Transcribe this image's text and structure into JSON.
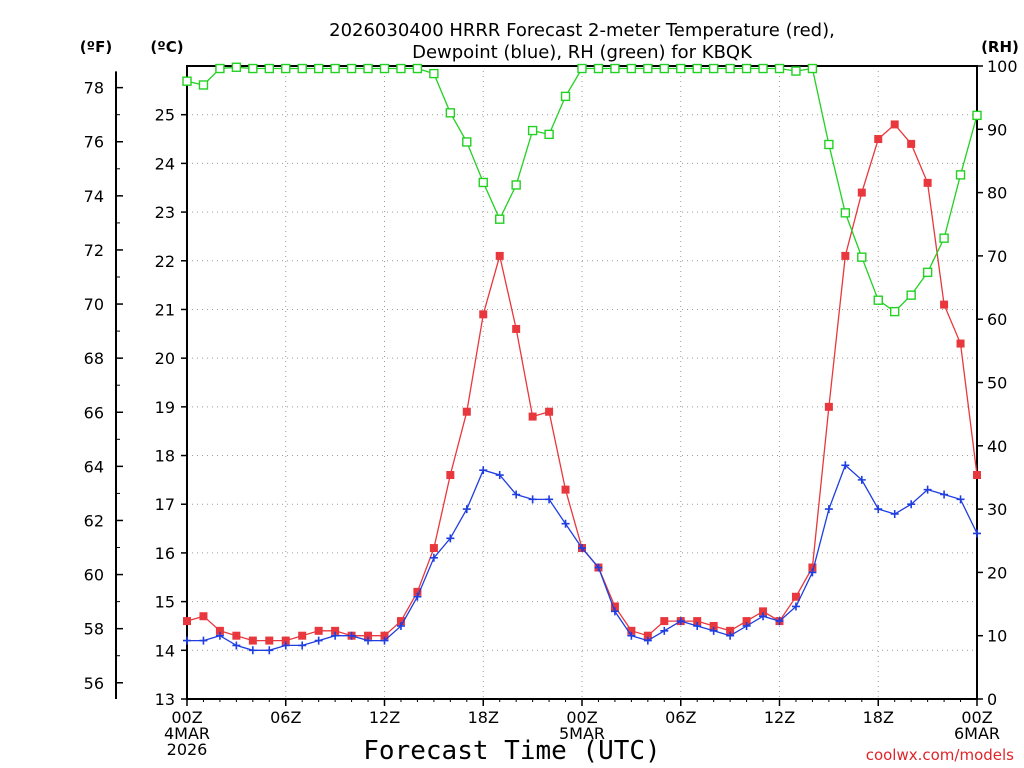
{
  "chart_data": {
    "type": "line",
    "title_line1": "2026030400 HRRR Forecast 2-meter Temperature (red),",
    "title_line2": "Dewpoint (blue), RH (green) for KBQK",
    "xlabel": "Forecast Time (UTC)",
    "credit": "coolwx.com/models",
    "units": {
      "fahrenheit": "(ºF)",
      "celsius": "(ºC)",
      "rh": "(RH)"
    },
    "x_hours": [
      0,
      1,
      2,
      3,
      4,
      5,
      6,
      7,
      8,
      9,
      10,
      11,
      12,
      13,
      14,
      15,
      16,
      17,
      18,
      19,
      20,
      21,
      22,
      23,
      24,
      25,
      26,
      27,
      28,
      29,
      30,
      31,
      32,
      33,
      34,
      35,
      36,
      37,
      38,
      39,
      40,
      41,
      42,
      43,
      44,
      45,
      46,
      47,
      48
    ],
    "x_range": [
      0,
      48
    ],
    "x_ticks": [
      {
        "hour": 0,
        "lines": [
          "00Z",
          "4MAR",
          "2026"
        ]
      },
      {
        "hour": 6,
        "lines": [
          "06Z"
        ]
      },
      {
        "hour": 12,
        "lines": [
          "12Z"
        ]
      },
      {
        "hour": 18,
        "lines": [
          "18Z"
        ]
      },
      {
        "hour": 24,
        "lines": [
          "00Z",
          "5MAR"
        ]
      },
      {
        "hour": 30,
        "lines": [
          "06Z"
        ]
      },
      {
        "hour": 36,
        "lines": [
          "12Z"
        ]
      },
      {
        "hour": 42,
        "lines": [
          "18Z"
        ]
      },
      {
        "hour": 48,
        "lines": [
          "00Z",
          "6MAR"
        ]
      }
    ],
    "celsius_axis": {
      "range": [
        13,
        26
      ],
      "ticks": [
        13,
        14,
        15,
        16,
        17,
        18,
        19,
        20,
        21,
        22,
        23,
        24,
        25
      ]
    },
    "fahrenheit_axis": {
      "range": [
        55.4,
        78.8
      ],
      "ticks": [
        56,
        58,
        60,
        62,
        64,
        66,
        68,
        70,
        72,
        74,
        76,
        78
      ]
    },
    "rh_axis": {
      "range": [
        0,
        100
      ],
      "ticks": [
        0,
        10,
        20,
        30,
        40,
        50,
        60,
        70,
        80,
        90,
        100
      ]
    },
    "grid": true,
    "series": [
      {
        "name": "Temperature",
        "color": "#e8383d",
        "marker": "filled-square",
        "unit": "C",
        "values": [
          14.6,
          14.7,
          14.4,
          14.3,
          14.2,
          14.2,
          14.2,
          14.3,
          14.4,
          14.4,
          14.3,
          14.3,
          14.3,
          14.6,
          15.2,
          16.1,
          17.6,
          18.9,
          20.9,
          22.1,
          20.6,
          18.8,
          18.9,
          17.3,
          16.1,
          15.7,
          14.9,
          14.4,
          14.3,
          14.6,
          14.6,
          14.6,
          14.5,
          14.4,
          14.6,
          14.8,
          14.6,
          15.1,
          15.7,
          19.0,
          22.1,
          23.4,
          24.5,
          24.8,
          24.4,
          23.6,
          21.1,
          20.3,
          17.6
        ]
      },
      {
        "name": "Dewpoint",
        "color": "#1f3ee0",
        "marker": "plus",
        "unit": "C",
        "values": [
          14.2,
          14.2,
          14.3,
          14.1,
          14.0,
          14.0,
          14.1,
          14.1,
          14.2,
          14.3,
          14.3,
          14.2,
          14.2,
          14.5,
          15.1,
          15.9,
          16.3,
          16.9,
          17.7,
          17.6,
          17.2,
          17.1,
          17.1,
          16.6,
          16.1,
          15.7,
          14.8,
          14.3,
          14.2,
          14.4,
          14.6,
          14.5,
          14.4,
          14.3,
          14.5,
          14.7,
          14.6,
          14.9,
          15.6,
          16.9,
          17.8,
          17.5,
          16.9,
          16.8,
          17.0,
          17.3,
          17.2,
          17.1,
          16.4
        ]
      },
      {
        "name": "RH",
        "color": "#22d122",
        "marker": "open-square",
        "unit": "%",
        "values": [
          97.6,
          97,
          99.6,
          99.8,
          99.6,
          99.6,
          99.6,
          99.6,
          99.6,
          99.6,
          99.6,
          99.6,
          99.6,
          99.6,
          99.6,
          98.8,
          92.6,
          88,
          81.6,
          75.8,
          81.2,
          89.8,
          89.2,
          95.2,
          99.6,
          99.6,
          99.6,
          99.6,
          99.6,
          99.6,
          99.6,
          99.6,
          99.6,
          99.6,
          99.6,
          99.6,
          99.6,
          99.2,
          99.6,
          87.6,
          76.8,
          69.8,
          63,
          61.2,
          63.8,
          67.4,
          72.8,
          82.8,
          92.2
        ]
      }
    ]
  }
}
